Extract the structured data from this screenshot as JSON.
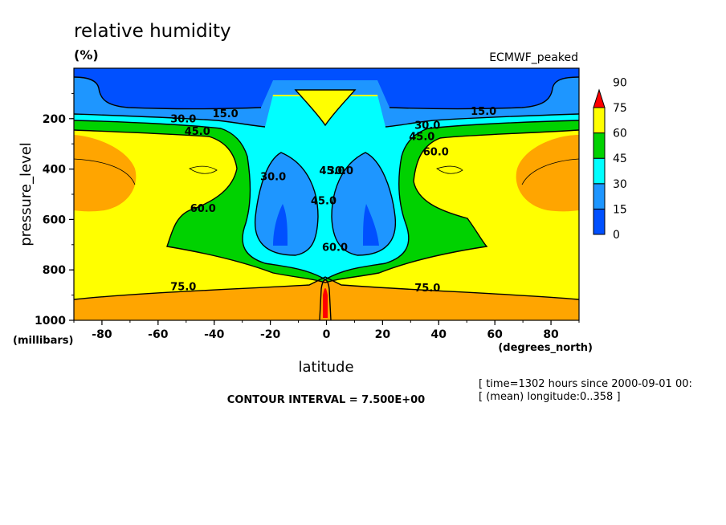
{
  "header": {
    "title": "relative humidity",
    "units": "(%)",
    "dataset": "ECMWF_peaked"
  },
  "footer": {
    "contour_interval": "CONTOUR INTERVAL = 7.500E+00",
    "time_note": "[ time=1302 hours since 2000-09-01 00:",
    "longitude_note": "[ (mean) longitude:0..358 ]"
  },
  "chart_data": {
    "type": "heatmap",
    "title": "relative humidity",
    "units": "(%)",
    "xlabel": "latitude",
    "xunit": "(degrees_north)",
    "ylabel": "pressure_level",
    "yunit": "(millibars)",
    "xlim": [
      -90,
      90
    ],
    "ylim": [
      1000,
      0
    ],
    "xticks": [
      -80,
      -60,
      -40,
      -20,
      0,
      20,
      40,
      60,
      80
    ],
    "yticks": [
      200,
      400,
      600,
      800,
      1000
    ],
    "contour_interval": 7.5,
    "colorbar": {
      "levels": [
        0,
        15,
        30,
        45,
        60,
        75,
        90
      ],
      "colors": [
        "#0050ff",
        "#1e96ff",
        "#00ffff",
        "#00d200",
        "#ffff00",
        "#ffa500",
        "#ff0000"
      ]
    },
    "contour_labels": [
      {
        "text": "15.0",
        "x": -36,
        "p": 195
      },
      {
        "text": "15.0",
        "x": 56,
        "p": 185
      },
      {
        "text": "30.0",
        "x": -51,
        "p": 215
      },
      {
        "text": "30.0",
        "x": 36,
        "p": 240
      },
      {
        "text": "45.0",
        "x": -46,
        "p": 265
      },
      {
        "text": "45.0",
        "x": 34,
        "p": 285
      },
      {
        "text": "60.0",
        "x": 39,
        "p": 345
      },
      {
        "text": "60.0",
        "x": -44,
        "p": 570
      },
      {
        "text": "30.0",
        "x": -19,
        "p": 445
      },
      {
        "text": "45.0",
        "x": 2,
        "p": 420
      },
      {
        "text": "30.0",
        "x": 5,
        "p": 420
      },
      {
        "text": "45.0",
        "x": -1,
        "p": 540
      },
      {
        "text": "60.0",
        "x": 3,
        "p": 725
      },
      {
        "text": "75.0",
        "x": -51,
        "p": 880
      },
      {
        "text": "75.0",
        "x": 36,
        "p": 885
      }
    ]
  }
}
